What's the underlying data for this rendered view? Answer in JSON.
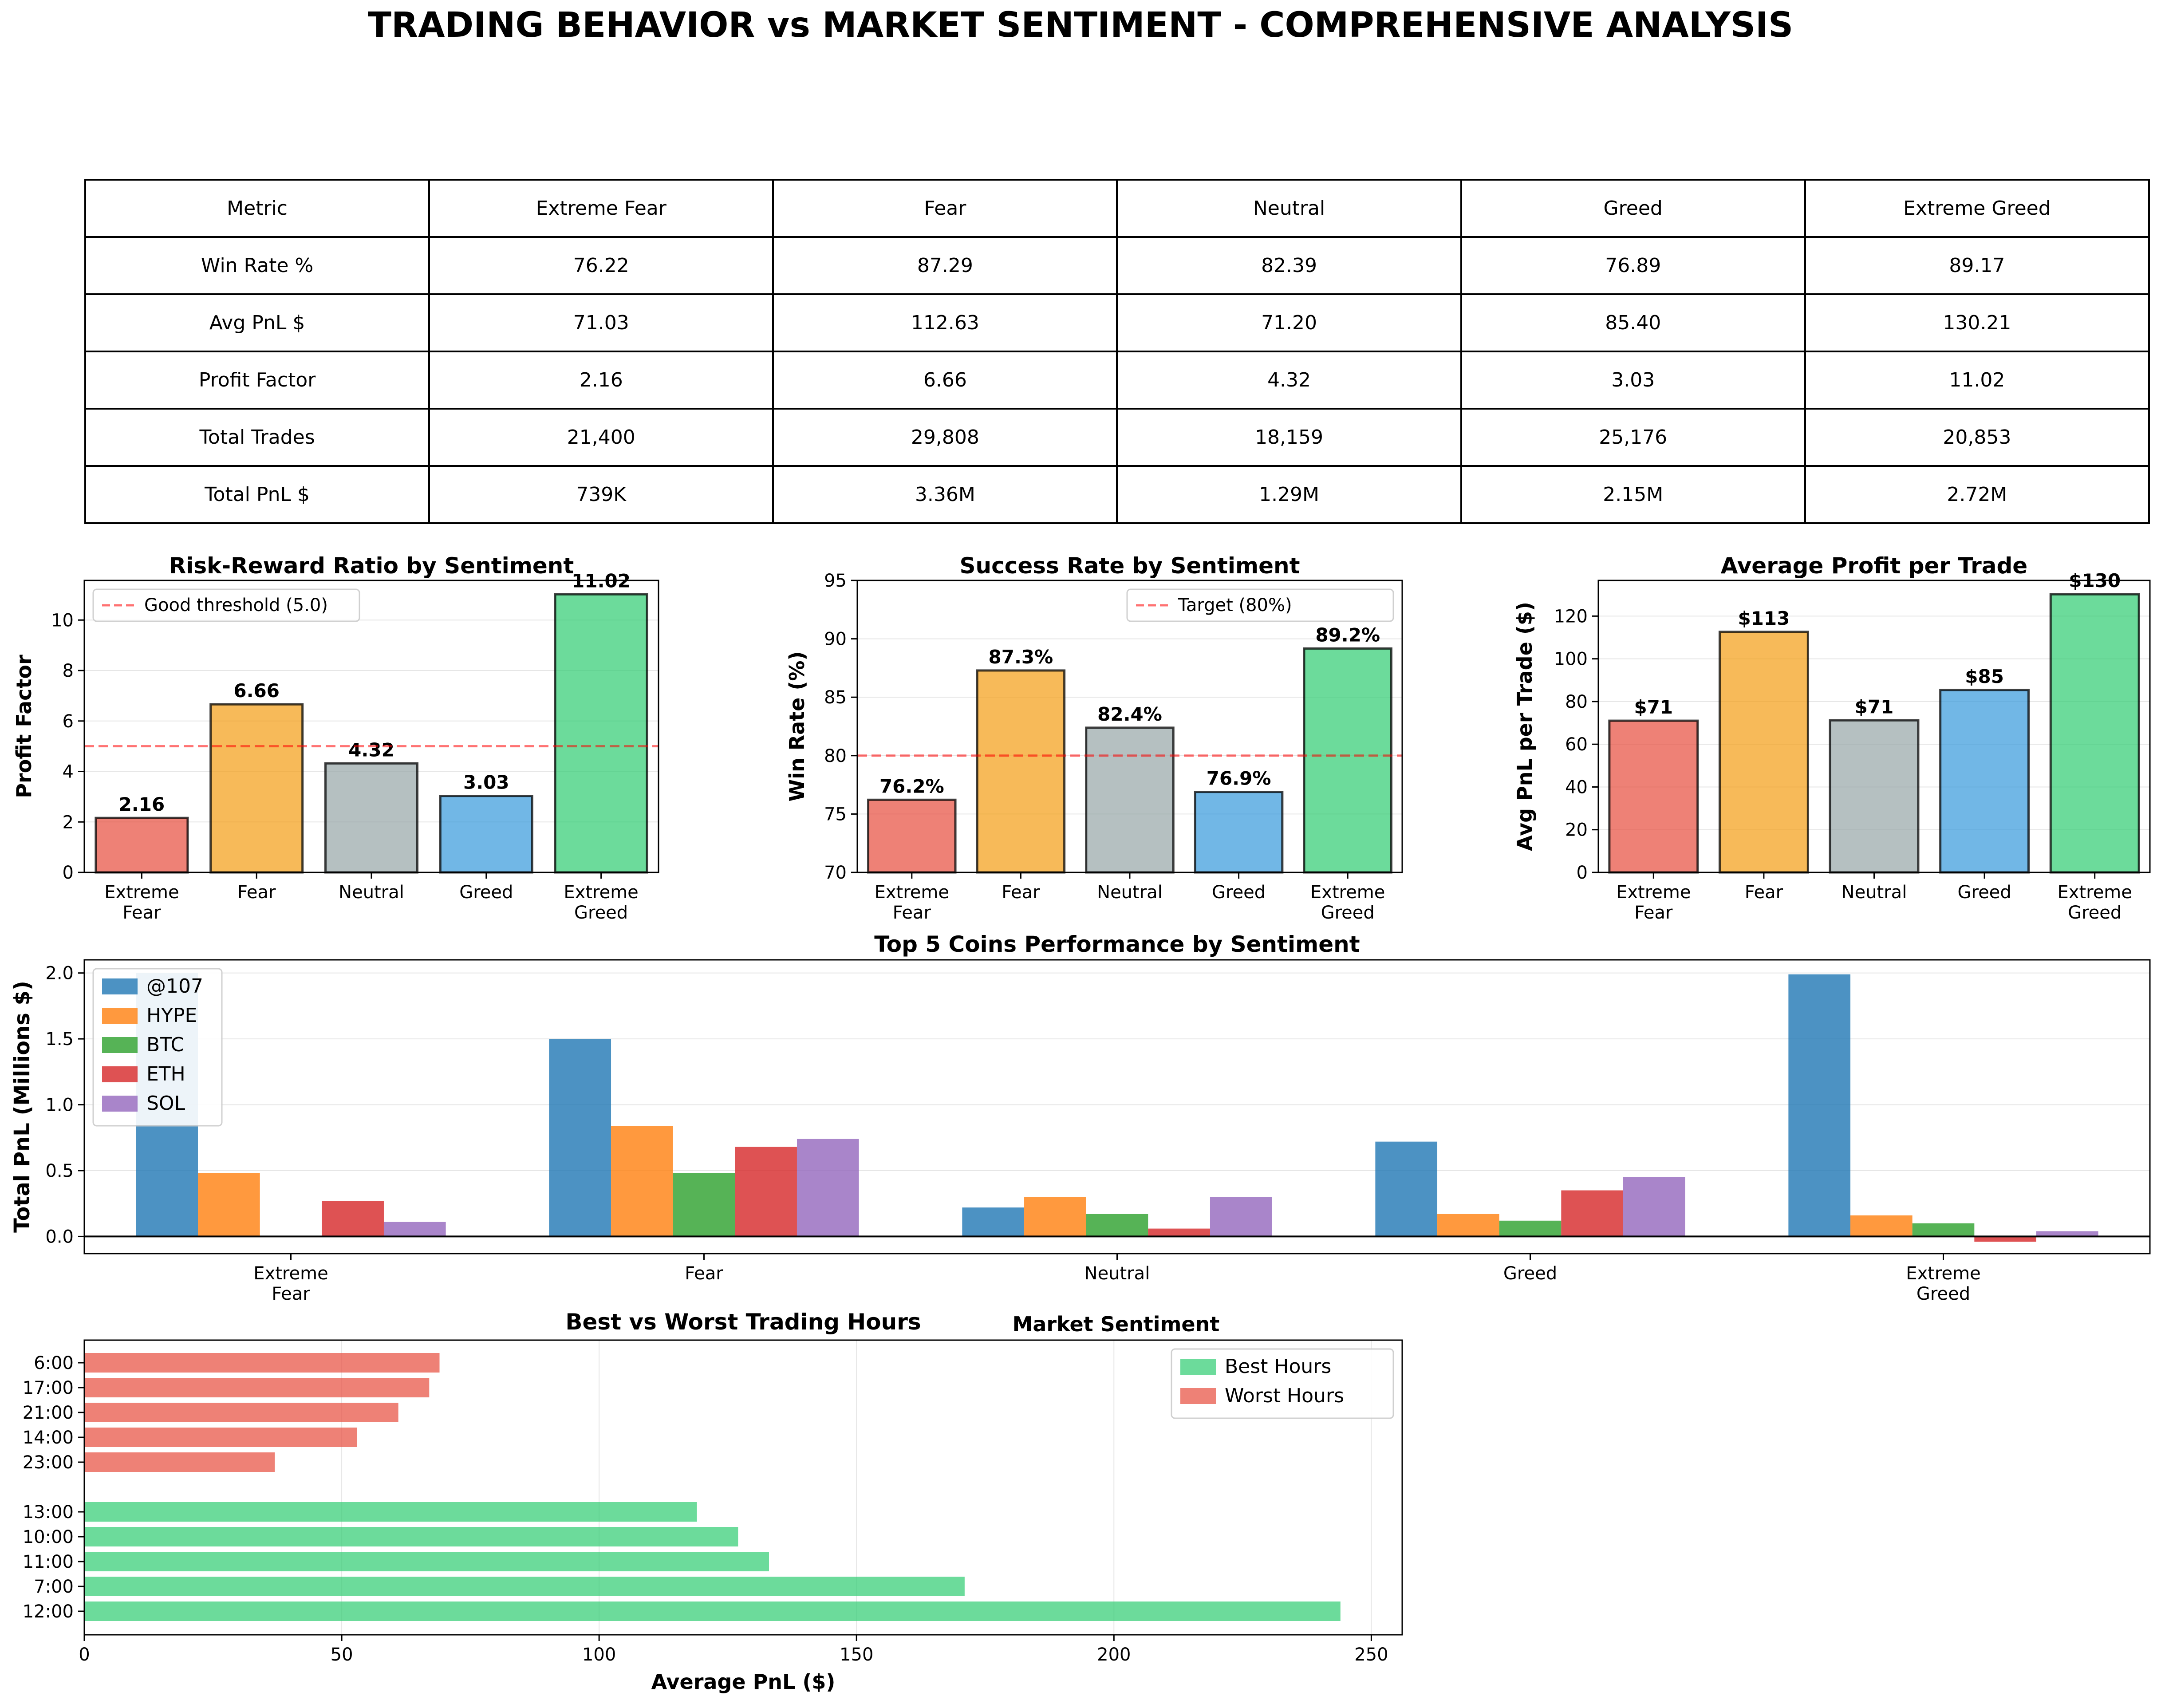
{
  "title": "TRADING BEHAVIOR vs MARKET SENTIMENT - COMPREHENSIVE ANALYSIS",
  "table": {
    "header": [
      "Metric",
      "Extreme Fear",
      "Fear",
      "Neutral",
      "Greed",
      "Extreme Greed"
    ],
    "rows": [
      [
        "Win Rate %",
        "76.22",
        "87.29",
        "82.39",
        "76.89",
        "89.17"
      ],
      [
        "Avg PnL $",
        "71.03",
        "112.63",
        "71.20",
        "85.40",
        "130.21"
      ],
      [
        "Profit Factor",
        "2.16",
        "6.66",
        "4.32",
        "3.03",
        "11.02"
      ],
      [
        "Total Trades",
        "21,400",
        "29,808",
        "18,159",
        "25,176",
        "20,853"
      ],
      [
        "Total PnL $",
        "739K",
        "3.36M",
        "1.29M",
        "2.15M",
        "2.72M"
      ]
    ]
  },
  "colors": {
    "sentiment": [
      "#e74c3c",
      "#f39c12",
      "#95a5a6",
      "#3498db",
      "#2ecc71"
    ],
    "coins": [
      "#1f77b4",
      "#ff7f0e",
      "#2ca02c",
      "#d62728",
      "#9467bd"
    ],
    "best": "#2ecc71",
    "worst": "#e74c3c",
    "threshold": "#ff0000"
  },
  "chart_data": [
    {
      "type": "bar",
      "title": "Risk-Reward Ratio by Sentiment",
      "categories": [
        "Extreme\nFear",
        "Fear",
        "Neutral",
        "Greed",
        "Extreme\nGreed"
      ],
      "values": [
        2.16,
        6.66,
        4.32,
        3.03,
        11.02
      ],
      "labels": [
        "2.16",
        "6.66",
        "4.32",
        "3.03",
        "11.02"
      ],
      "ylabel": "Profit Factor",
      "ylim": [
        0,
        11.57
      ],
      "yticks": [
        0,
        2,
        4,
        6,
        8,
        10
      ],
      "threshold": 5.0,
      "threshold_label": "Good threshold (5.0)",
      "legend_position": "upper-left",
      "grid": true
    },
    {
      "type": "bar",
      "title": "Success Rate by Sentiment",
      "categories": [
        "Extreme\nFear",
        "Fear",
        "Neutral",
        "Greed",
        "Extreme\nGreed"
      ],
      "values": [
        76.22,
        87.29,
        82.39,
        76.89,
        89.17
      ],
      "labels": [
        "76.2%",
        "87.3%",
        "82.4%",
        "76.9%",
        "89.2%"
      ],
      "ylabel": "Win Rate (%)",
      "ylim": [
        70,
        95
      ],
      "yticks": [
        70,
        75,
        80,
        85,
        90,
        95
      ],
      "threshold": 80,
      "threshold_label": "Target (80%)",
      "legend_position": "upper-right",
      "grid": true
    },
    {
      "type": "bar",
      "title": "Average Profit per Trade",
      "categories": [
        "Extreme\nFear",
        "Fear",
        "Neutral",
        "Greed",
        "Extreme\nGreed"
      ],
      "values": [
        71.03,
        112.63,
        71.2,
        85.4,
        130.21
      ],
      "labels": [
        "$71",
        "$113",
        "$71",
        "$85",
        "$130"
      ],
      "ylabel": "Avg PnL per Trade ($)",
      "ylim": [
        0,
        136.7
      ],
      "yticks": [
        0,
        20,
        40,
        60,
        80,
        100,
        120
      ],
      "grid": true
    },
    {
      "type": "bar",
      "title": "Top 5 Coins Performance by Sentiment",
      "categories": [
        "Extreme\nFear",
        "Fear",
        "Neutral",
        "Greed",
        "Extreme\nGreed"
      ],
      "series": [
        {
          "name": "@107",
          "values": [
            2.0,
            1.5,
            0.22,
            0.72,
            1.99
          ]
        },
        {
          "name": "HYPE",
          "values": [
            0.48,
            0.84,
            0.3,
            0.17,
            0.16
          ]
        },
        {
          "name": "BTC",
          "values": [
            0.0,
            0.48,
            0.17,
            0.12,
            0.1
          ]
        },
        {
          "name": "ETH",
          "values": [
            0.27,
            0.68,
            0.06,
            0.35,
            -0.04
          ]
        },
        {
          "name": "SOL",
          "values": [
            0.11,
            0.74,
            0.3,
            0.45,
            0.04
          ]
        }
      ],
      "xlabel": "Market Sentiment",
      "ylabel": "Total PnL (Millions $)",
      "ylim": [
        -0.13,
        2.1
      ],
      "yticks": [
        0.0,
        0.5,
        1.0,
        1.5,
        2.0
      ],
      "ytick_labels": [
        "0.0",
        "0.5",
        "1.0",
        "1.5",
        "2.0"
      ],
      "legend_position": "upper-left",
      "grid": true
    },
    {
      "type": "bar",
      "orientation": "horizontal",
      "title": "Best vs Worst Trading Hours",
      "series": [
        {
          "name": "Best Hours",
          "categories": [
            "12:00",
            "7:00",
            "11:00",
            "10:00",
            "13:00"
          ],
          "values": [
            244,
            171,
            133,
            127,
            119
          ]
        },
        {
          "name": "Worst Hours",
          "categories": [
            "23:00",
            "14:00",
            "21:00",
            "17:00",
            "6:00"
          ],
          "values": [
            37,
            53,
            61,
            67,
            69
          ]
        }
      ],
      "xlabel": "Average PnL ($)",
      "xlim": [
        0,
        256
      ],
      "xticks": [
        0,
        50,
        100,
        150,
        200,
        250
      ],
      "legend_position": "upper-right",
      "grid": true
    }
  ]
}
